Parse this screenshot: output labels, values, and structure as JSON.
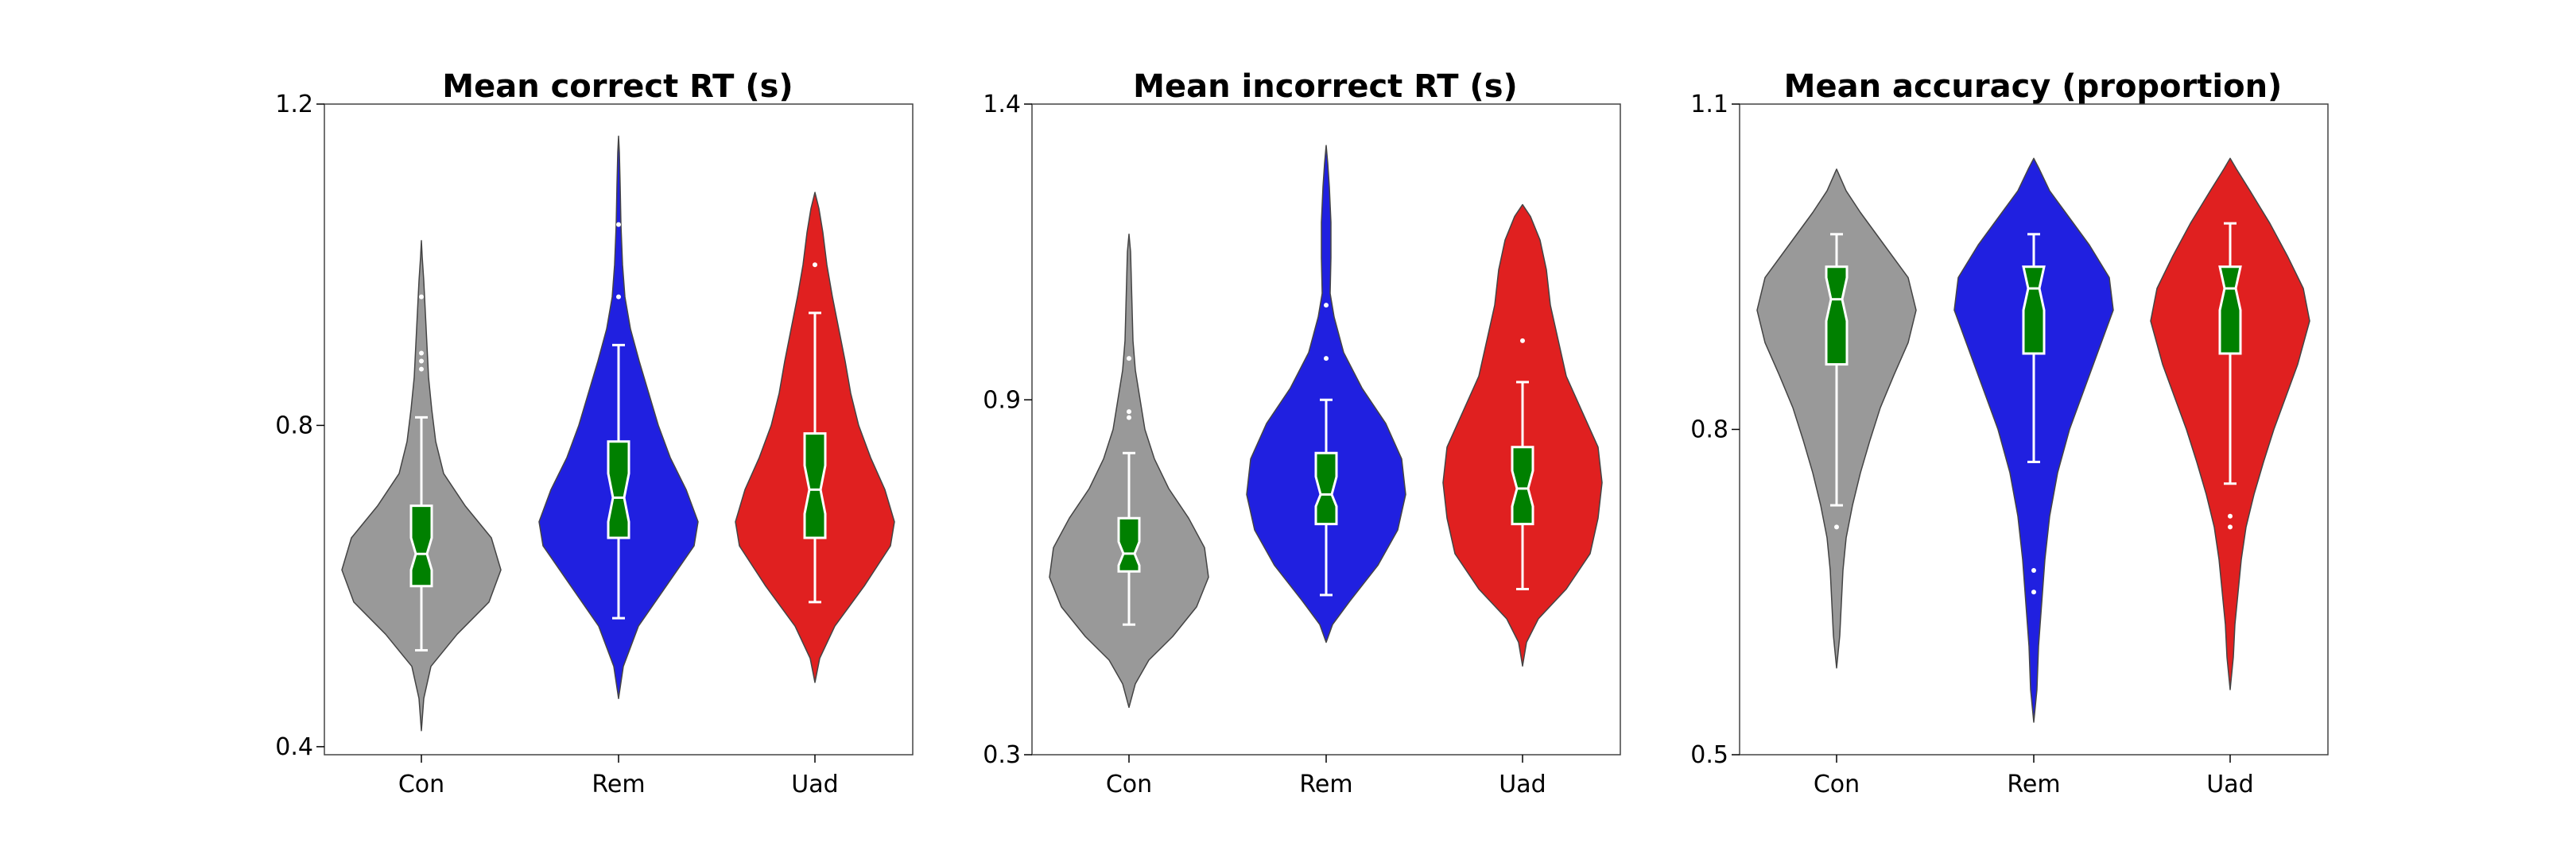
{
  "chart_data": [
    {
      "type": "violin",
      "title": "Mean correct RT (s)",
      "ylim": [
        0.39,
        1.2
      ],
      "yticks": [
        {
          "value": 0.4,
          "label": "0.4"
        },
        {
          "value": 0.8,
          "label": "0.8"
        },
        {
          "value": 1.2,
          "label": "1.2"
        }
      ],
      "categories": [
        "Con",
        "Rem",
        "Uad"
      ],
      "colors": [
        "#999999",
        "#2020e0",
        "#e02020"
      ],
      "box_color": "#008000",
      "series": [
        {
          "whisker_low": 0.52,
          "q1": 0.6,
          "median": 0.64,
          "q3": 0.7,
          "whisker_high": 0.81,
          "notch_low": 0.62,
          "notch_high": 0.66,
          "outliers": [
            0.87,
            0.88,
            0.89,
            0.96
          ],
          "violin": [
            [
              0.42,
              0
            ],
            [
              0.46,
              0.03
            ],
            [
              0.5,
              0.12
            ],
            [
              0.54,
              0.45
            ],
            [
              0.58,
              0.85
            ],
            [
              0.62,
              1.0
            ],
            [
              0.66,
              0.88
            ],
            [
              0.7,
              0.55
            ],
            [
              0.74,
              0.28
            ],
            [
              0.78,
              0.18
            ],
            [
              0.82,
              0.13
            ],
            [
              0.86,
              0.09
            ],
            [
              0.9,
              0.07
            ],
            [
              0.94,
              0.05
            ],
            [
              0.98,
              0.03
            ],
            [
              1.01,
              0.01
            ],
            [
              1.03,
              0
            ]
          ]
        },
        {
          "whisker_low": 0.56,
          "q1": 0.66,
          "median": 0.71,
          "q3": 0.78,
          "whisker_high": 0.9,
          "notch_low": 0.68,
          "notch_high": 0.74,
          "outliers": [
            0.96,
            1.05
          ],
          "violin": [
            [
              0.46,
              0
            ],
            [
              0.5,
              0.06
            ],
            [
              0.55,
              0.25
            ],
            [
              0.6,
              0.6
            ],
            [
              0.65,
              0.95
            ],
            [
              0.68,
              1.0
            ],
            [
              0.72,
              0.85
            ],
            [
              0.76,
              0.65
            ],
            [
              0.8,
              0.5
            ],
            [
              0.84,
              0.38
            ],
            [
              0.88,
              0.26
            ],
            [
              0.92,
              0.15
            ],
            [
              0.96,
              0.08
            ],
            [
              1.0,
              0.05
            ],
            [
              1.05,
              0.03
            ],
            [
              1.1,
              0.02
            ],
            [
              1.14,
              0.01
            ],
            [
              1.16,
              0
            ]
          ]
        },
        {
          "whisker_low": 0.58,
          "q1": 0.66,
          "median": 0.72,
          "q3": 0.79,
          "whisker_high": 0.94,
          "notch_low": 0.69,
          "notch_high": 0.75,
          "outliers": [
            1.0
          ],
          "violin": [
            [
              0.48,
              0
            ],
            [
              0.51,
              0.06
            ],
            [
              0.55,
              0.25
            ],
            [
              0.6,
              0.62
            ],
            [
              0.65,
              0.95
            ],
            [
              0.68,
              1.0
            ],
            [
              0.72,
              0.88
            ],
            [
              0.76,
              0.7
            ],
            [
              0.8,
              0.55
            ],
            [
              0.84,
              0.45
            ],
            [
              0.88,
              0.38
            ],
            [
              0.92,
              0.3
            ],
            [
              0.96,
              0.22
            ],
            [
              1.0,
              0.15
            ],
            [
              1.04,
              0.1
            ],
            [
              1.07,
              0.05
            ],
            [
              1.09,
              0
            ]
          ]
        }
      ]
    },
    {
      "type": "violin",
      "title": "Mean incorrect RT (s)",
      "ylim": [
        0.3,
        1.4
      ],
      "yticks": [
        {
          "value": 0.3,
          "label": "0.3"
        },
        {
          "value": 0.9,
          "label": "0.9"
        },
        {
          "value": 1.4,
          "label": "1.4"
        }
      ],
      "categories": [
        "Con",
        "Rem",
        "Uad"
      ],
      "colors": [
        "#999999",
        "#2020e0",
        "#e02020"
      ],
      "box_color": "#008000",
      "series": [
        {
          "whisker_low": 0.52,
          "q1": 0.61,
          "median": 0.64,
          "q3": 0.7,
          "whisker_high": 0.81,
          "notch_low": 0.62,
          "notch_high": 0.66,
          "outliers": [
            0.87,
            0.88,
            0.97
          ],
          "violin": [
            [
              0.38,
              0
            ],
            [
              0.42,
              0.08
            ],
            [
              0.46,
              0.25
            ],
            [
              0.5,
              0.55
            ],
            [
              0.55,
              0.85
            ],
            [
              0.6,
              1.0
            ],
            [
              0.65,
              0.95
            ],
            [
              0.7,
              0.75
            ],
            [
              0.75,
              0.5
            ],
            [
              0.8,
              0.32
            ],
            [
              0.85,
              0.2
            ],
            [
              0.9,
              0.14
            ],
            [
              0.95,
              0.08
            ],
            [
              1.0,
              0.05
            ],
            [
              1.05,
              0.04
            ],
            [
              1.1,
              0.03
            ],
            [
              1.15,
              0.02
            ],
            [
              1.18,
              0
            ]
          ]
        },
        {
          "whisker_low": 0.57,
          "q1": 0.69,
          "median": 0.74,
          "q3": 0.81,
          "whisker_high": 0.9,
          "notch_low": 0.72,
          "notch_high": 0.77,
          "outliers": [
            0.97,
            1.06
          ],
          "violin": [
            [
              0.49,
              0
            ],
            [
              0.52,
              0.08
            ],
            [
              0.56,
              0.3
            ],
            [
              0.62,
              0.65
            ],
            [
              0.68,
              0.9
            ],
            [
              0.74,
              1.0
            ],
            [
              0.8,
              0.95
            ],
            [
              0.86,
              0.75
            ],
            [
              0.92,
              0.45
            ],
            [
              0.98,
              0.22
            ],
            [
              1.04,
              0.1
            ],
            [
              1.08,
              0.05
            ],
            [
              1.14,
              0.06
            ],
            [
              1.2,
              0.06
            ],
            [
              1.26,
              0.04
            ],
            [
              1.3,
              0.02
            ],
            [
              1.33,
              0
            ]
          ]
        },
        {
          "whisker_low": 0.58,
          "q1": 0.69,
          "median": 0.75,
          "q3": 0.82,
          "whisker_high": 0.93,
          "notch_low": 0.72,
          "notch_high": 0.78,
          "outliers": [
            1.0
          ],
          "violin": [
            [
              0.45,
              0
            ],
            [
              0.49,
              0.05
            ],
            [
              0.53,
              0.2
            ],
            [
              0.58,
              0.55
            ],
            [
              0.64,
              0.85
            ],
            [
              0.7,
              0.95
            ],
            [
              0.76,
              1.0
            ],
            [
              0.82,
              0.95
            ],
            [
              0.88,
              0.75
            ],
            [
              0.94,
              0.55
            ],
            [
              1.0,
              0.45
            ],
            [
              1.06,
              0.35
            ],
            [
              1.12,
              0.3
            ],
            [
              1.17,
              0.22
            ],
            [
              1.21,
              0.1
            ],
            [
              1.23,
              0
            ]
          ]
        }
      ]
    },
    {
      "type": "violin",
      "title": "Mean accuracy (proportion)",
      "ylim": [
        0.5,
        1.1
      ],
      "yticks": [
        {
          "value": 0.5,
          "label": "0.5"
        },
        {
          "value": 0.8,
          "label": "0.8"
        },
        {
          "value": 1.1,
          "label": "1.1"
        }
      ],
      "categories": [
        "Con",
        "Rem",
        "Uad"
      ],
      "colors": [
        "#999999",
        "#2020e0",
        "#e02020"
      ],
      "box_color": "#008000",
      "series": [
        {
          "whisker_low": 0.73,
          "q1": 0.86,
          "median": 0.92,
          "q3": 0.95,
          "whisker_high": 0.98,
          "notch_low": 0.9,
          "notch_high": 0.94,
          "outliers": [
            0.71
          ],
          "violin": [
            [
              0.58,
              0
            ],
            [
              0.61,
              0.04
            ],
            [
              0.64,
              0.06
            ],
            [
              0.67,
              0.08
            ],
            [
              0.7,
              0.12
            ],
            [
              0.73,
              0.2
            ],
            [
              0.76,
              0.3
            ],
            [
              0.79,
              0.42
            ],
            [
              0.82,
              0.55
            ],
            [
              0.85,
              0.72
            ],
            [
              0.88,
              0.9
            ],
            [
              0.91,
              1.0
            ],
            [
              0.94,
              0.9
            ],
            [
              0.97,
              0.6
            ],
            [
              1.0,
              0.3
            ],
            [
              1.02,
              0.12
            ],
            [
              1.04,
              0
            ]
          ]
        },
        {
          "whisker_low": 0.77,
          "q1": 0.87,
          "median": 0.93,
          "q3": 0.95,
          "whisker_high": 0.98,
          "notch_low": 0.91,
          "notch_high": 0.95,
          "outliers": [
            0.65,
            0.67
          ],
          "violin": [
            [
              0.53,
              0
            ],
            [
              0.56,
              0.04
            ],
            [
              0.6,
              0.06
            ],
            [
              0.64,
              0.1
            ],
            [
              0.68,
              0.14
            ],
            [
              0.72,
              0.2
            ],
            [
              0.76,
              0.3
            ],
            [
              0.8,
              0.45
            ],
            [
              0.84,
              0.65
            ],
            [
              0.88,
              0.85
            ],
            [
              0.91,
              1.0
            ],
            [
              0.94,
              0.95
            ],
            [
              0.97,
              0.7
            ],
            [
              1.0,
              0.4
            ],
            [
              1.02,
              0.2
            ],
            [
              1.04,
              0.07
            ],
            [
              1.05,
              0
            ]
          ]
        },
        {
          "whisker_low": 0.75,
          "q1": 0.87,
          "median": 0.93,
          "q3": 0.95,
          "whisker_high": 0.99,
          "notch_low": 0.91,
          "notch_high": 0.95,
          "outliers": [
            0.71,
            0.72
          ],
          "violin": [
            [
              0.56,
              0
            ],
            [
              0.59,
              0.04
            ],
            [
              0.62,
              0.06
            ],
            [
              0.65,
              0.1
            ],
            [
              0.68,
              0.14
            ],
            [
              0.71,
              0.2
            ],
            [
              0.74,
              0.3
            ],
            [
              0.77,
              0.42
            ],
            [
              0.8,
              0.55
            ],
            [
              0.83,
              0.7
            ],
            [
              0.86,
              0.85
            ],
            [
              0.9,
              1.0
            ],
            [
              0.93,
              0.92
            ],
            [
              0.96,
              0.72
            ],
            [
              0.99,
              0.5
            ],
            [
              1.02,
              0.25
            ],
            [
              1.04,
              0.08
            ],
            [
              1.05,
              0
            ]
          ]
        }
      ]
    }
  ]
}
